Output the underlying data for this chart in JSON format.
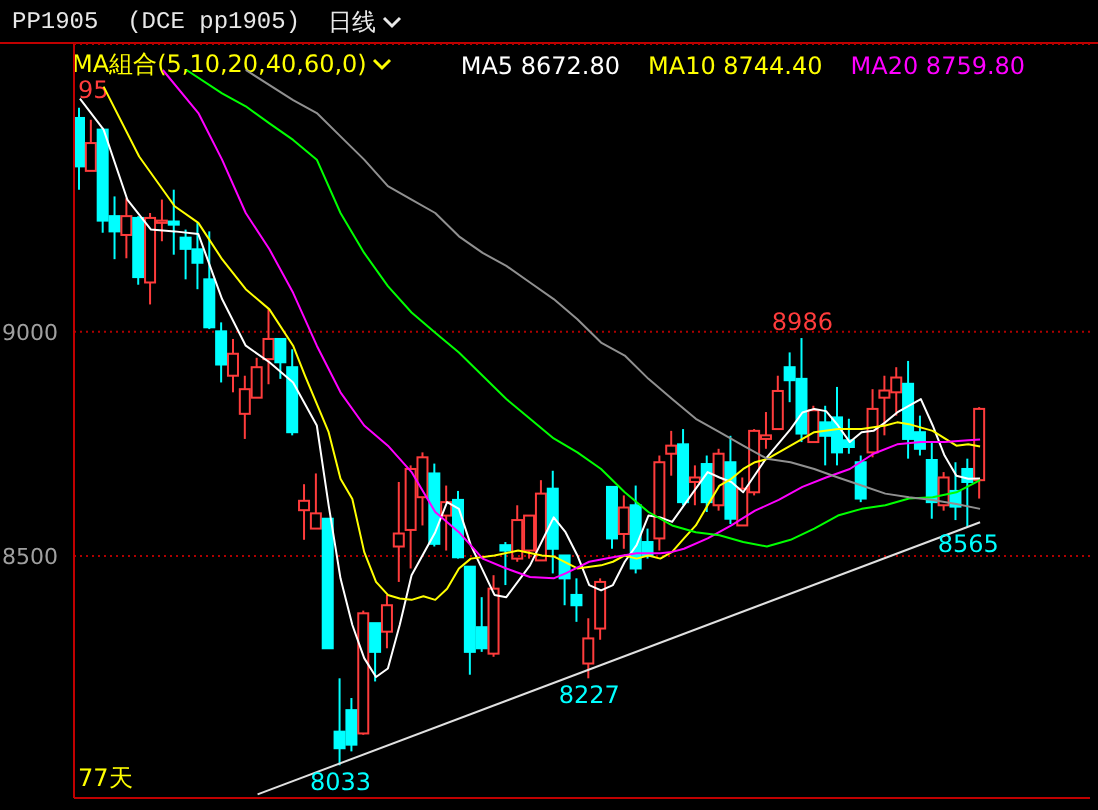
{
  "chart_data": {
    "type": "candlestick",
    "title": "PP1905  (DCE pp1905)",
    "subtitle": "MA組合(5,10,20,40,60,0)",
    "annotations": [
      "95",
      "77天",
      {
        "text": "8986",
        "y": 8986
      },
      {
        "text": "8227",
        "y": 8227
      },
      {
        "text": "8033",
        "y": 8033
      },
      {
        "text": "8565",
        "y": 8565
      },
      "日线"
    ],
    "categories": [
      null,
      null,
      null,
      null,
      null,
      null,
      null,
      null,
      null,
      null,
      null,
      null,
      null,
      null,
      null,
      null,
      null,
      null,
      null,
      null,
      null,
      null,
      null,
      null,
      null,
      null,
      null,
      null,
      null,
      null,
      null,
      null,
      null,
      null,
      null,
      null,
      null,
      null,
      null,
      null,
      null,
      null,
      null,
      null,
      null,
      null,
      null,
      null,
      null,
      null,
      null,
      null,
      null,
      null,
      null,
      null,
      null,
      null,
      null,
      null,
      null,
      null,
      null,
      null,
      null,
      null,
      null,
      null,
      null,
      null,
      null,
      null,
      null,
      null,
      null,
      null,
      null
    ],
    "ohlc": [
      [
        9477,
        9500,
        9317,
        9369
      ],
      [
        9359,
        9473,
        9359,
        9421
      ],
      [
        9451,
        9455,
        9221,
        9248
      ],
      [
        9258,
        9302,
        9162,
        9224
      ],
      [
        9216,
        9298,
        9164,
        9258
      ],
      [
        9254,
        9258,
        9105,
        9122
      ],
      [
        9110,
        9265,
        9061,
        9254
      ],
      [
        9243,
        9295,
        9202,
        9248
      ],
      [
        9246,
        9317,
        9172,
        9239
      ],
      [
        9210,
        9228,
        9117,
        9185
      ],
      [
        9184,
        9243,
        9095,
        9154
      ],
      [
        9117,
        9224,
        9006,
        9010
      ],
      [
        9001,
        9021,
        8887,
        8927
      ],
      [
        8902,
        8984,
        8865,
        8951
      ],
      [
        8817,
        8902,
        8761,
        8872
      ],
      [
        8853,
        8942,
        8853,
        8921
      ],
      [
        8939,
        9050,
        8883,
        8984
      ],
      [
        8984,
        8984,
        8895,
        8932
      ],
      [
        8921,
        8961,
        8769,
        8776
      ],
      [
        8602,
        8660,
        8536,
        8623
      ],
      [
        8561,
        8684,
        8561,
        8595
      ],
      [
        8583,
        8583,
        8294,
        8294
      ],
      [
        8108,
        8227,
        8033,
        8071
      ],
      [
        8156,
        8183,
        8064,
        8079
      ],
      [
        8104,
        8378,
        8101,
        8372
      ],
      [
        8350,
        8350,
        8220,
        8286
      ],
      [
        8331,
        8413,
        8294,
        8390
      ],
      [
        8521,
        8665,
        8442,
        8550
      ],
      [
        8558,
        8702,
        8472,
        8694
      ],
      [
        8631,
        8731,
        8568,
        8720
      ],
      [
        8684,
        8706,
        8521,
        8527
      ],
      [
        8590,
        8657,
        8512,
        8620
      ],
      [
        8625,
        8645,
        8494,
        8497
      ],
      [
        8476,
        8476,
        8235,
        8286
      ],
      [
        8341,
        8408,
        8286,
        8294
      ],
      [
        8282,
        8457,
        8275,
        8427
      ],
      [
        8524,
        8531,
        8435,
        8512
      ],
      [
        8494,
        8613,
        8487,
        8580
      ],
      [
        8512,
        8590,
        8494,
        8590
      ],
      [
        8490,
        8669,
        8490,
        8639
      ],
      [
        8650,
        8690,
        8461,
        8516
      ],
      [
        8501,
        8501,
        8390,
        8450
      ],
      [
        8413,
        8450,
        8353,
        8390
      ],
      [
        8260,
        8361,
        8227,
        8316
      ],
      [
        8338,
        8450,
        8313,
        8442
      ],
      [
        8654,
        8654,
        8516,
        8539
      ],
      [
        8549,
        8635,
        8516,
        8608
      ],
      [
        8613,
        8657,
        8461,
        8472
      ],
      [
        8531,
        8561,
        8494,
        8501
      ],
      [
        8539,
        8724,
        8512,
        8709
      ],
      [
        8728,
        8779,
        8679,
        8746
      ],
      [
        8749,
        8783,
        8613,
        8620
      ],
      [
        8665,
        8702,
        8613,
        8675
      ],
      [
        8705,
        8724,
        8598,
        8620
      ],
      [
        8613,
        8739,
        8601,
        8728
      ],
      [
        8709,
        8768,
        8571,
        8583
      ],
      [
        8568,
        8675,
        8568,
        8650
      ],
      [
        8642,
        8783,
        8635,
        8779
      ],
      [
        8761,
        8821,
        8739,
        8769
      ],
      [
        8783,
        8902,
        8783,
        8868
      ],
      [
        8921,
        8954,
        8843,
        8892
      ],
      [
        8895,
        8986,
        8754,
        8773
      ],
      [
        8754,
        8835,
        8754,
        8825
      ],
      [
        8798,
        8835,
        8702,
        8768
      ],
      [
        8809,
        8877,
        8702,
        8731
      ],
      [
        8758,
        8806,
        8728,
        8743
      ],
      [
        8709,
        8724,
        8620,
        8628
      ],
      [
        8731,
        8872,
        8720,
        8828
      ],
      [
        8853,
        8902,
        8769,
        8869
      ],
      [
        8865,
        8921,
        8813,
        8898
      ],
      [
        8884,
        8935,
        8717,
        8761
      ],
      [
        8776,
        8813,
        8724,
        8739
      ],
      [
        8714,
        8754,
        8583,
        8620
      ],
      [
        8613,
        8687,
        8601,
        8675
      ],
      [
        8645,
        8709,
        8580,
        8610
      ],
      [
        8694,
        8717,
        8565,
        8665
      ],
      [
        8669,
        8832,
        8628,
        8828
      ]
    ],
    "series": [
      {
        "type": "line",
        "name": "MA5 8672.80",
        "color": "#ffffff",
        "values": [
          9520,
          null,
          9451,
          null,
          9295,
          null,
          9228,
          null,
          9224,
          null,
          9218,
          null,
          9073,
          null,
          8969,
          null,
          8932,
          null,
          8887,
          null,
          8791,
          8613,
          8450,
          8346,
          8272,
          8230,
          8249,
          8346,
          8457,
          null,
          8553,
          8620,
          8605,
          8524,
          null,
          8413,
          8408,
          null,
          8479,
          null,
          8586,
          8553,
          8501,
          8435,
          8423,
          8435,
          8487,
          8524,
          8590,
          8586,
          8576,
          null,
          8650,
          8687,
          8675,
          8665,
          8642,
          null,
          8720,
          null,
          8783,
          8820,
          8828,
          8823,
          8791,
          8754,
          8776,
          8779,
          8798,
          8820,
          null,
          8850,
          8791,
          8724,
          8679,
          8672,
          8673
        ]
      },
      {
        "type": "line",
        "name": "MA10 8744.40",
        "color": "#ffff00",
        "values": [
          null,
          null,
          9547,
          null,
          null,
          9391,
          null,
          null,
          9280,
          null,
          9243,
          null,
          9162,
          null,
          9095,
          null,
          9050,
          null,
          8969,
          8902,
          null,
          8776,
          8672,
          8627,
          8509,
          8442,
          8413,
          8405,
          8402,
          8410,
          8402,
          8427,
          8472,
          8494,
          null,
          8501,
          null,
          8512,
          null,
          8501,
          8499,
          null,
          8472,
          null,
          8479,
          8487,
          8501,
          8494,
          8501,
          8494,
          8509,
          8539,
          8568,
          8613,
          8657,
          8672,
          8694,
          8709,
          8716,
          8731,
          8746,
          8761,
          8776,
          null,
          8783,
          null,
          8783,
          null,
          8791,
          8798,
          8794,
          null,
          8779,
          null,
          8746,
          8749,
          8744
        ]
      },
      {
        "type": "line",
        "name": "MA20 8759.80",
        "color": "#ff00ff",
        "values": [
          null,
          null,
          null,
          null,
          null,
          null,
          null,
          9584,
          null,
          null,
          9488,
          null,
          9384,
          null,
          9265,
          null,
          9184,
          null,
          9087,
          null,
          8969,
          null,
          8865,
          null,
          8791,
          null,
          8746,
          null,
          8687,
          null,
          8598,
          null,
          8553,
          null,
          8494,
          null,
          8472,
          null,
          8453,
          null,
          8450,
          8461,
          null,
          8487,
          null,
          8497,
          null,
          8506,
          null,
          8506,
          8509,
          8516,
          null,
          8539,
          null,
          8568,
          null,
          8601,
          null,
          8625,
          null,
          8654,
          null,
          8675,
          null,
          8694,
          null,
          8728,
          null,
          8749,
          null,
          8754,
          null,
          8754,
          null,
          8758,
          8760
        ]
      },
      {
        "type": "line",
        "color": "#00ff00",
        "values": [
          null,
          null,
          null,
          null,
          null,
          null,
          null,
          null,
          null,
          9584,
          null,
          null,
          9532,
          null,
          9503,
          null,
          9465,
          null,
          9428,
          null,
          9384,
          null,
          9265,
          null,
          9176,
          null,
          9102,
          null,
          9043,
          null,
          8998,
          null,
          8954,
          null,
          8902,
          null,
          8850,
          null,
          8806,
          null,
          8762,
          null,
          8731,
          null,
          8694,
          null,
          8642,
          null,
          8598,
          null,
          8568,
          null,
          8553,
          null,
          8546,
          null,
          8531,
          null,
          8521,
          null,
          8536,
          null,
          8561,
          null,
          8590,
          null,
          8605,
          null,
          8613,
          null,
          8628,
          null,
          8631,
          null,
          8642,
          null,
          8669
        ]
      },
      {
        "type": "line",
        "color": "#909090",
        "values": [
          null,
          null,
          null,
          null,
          null,
          null,
          null,
          null,
          null,
          null,
          null,
          null,
          null,
          null,
          9584,
          null,
          null,
          null,
          9517,
          null,
          9488,
          null,
          9436,
          null,
          9384,
          null,
          9325,
          null,
          9295,
          null,
          9265,
          null,
          9213,
          null,
          9176,
          null,
          9147,
          null,
          9110,
          null,
          9073,
          null,
          9028,
          null,
          8976,
          null,
          8947,
          null,
          8895,
          null,
          8850,
          null,
          8806,
          null,
          8776,
          null,
          8746,
          null,
          8717,
          null,
          8709,
          null,
          8694,
          null,
          8675,
          null,
          8657,
          null,
          8639,
          null,
          8631,
          null,
          8625,
          null,
          8616,
          null,
          8605
        ]
      },
      {
        "type": "line",
        "color": "#e0e0e0",
        "values": [
          null,
          null,
          null,
          null,
          null,
          null,
          null,
          null,
          null,
          null,
          null,
          null,
          null,
          null,
          null,
          7968,
          null,
          null,
          null,
          null,
          null,
          null,
          null,
          null,
          null,
          null,
          null,
          null,
          null,
          null,
          null,
          null,
          null,
          null,
          null,
          null,
          null,
          null,
          null,
          null,
          null,
          null,
          null,
          null,
          null,
          null,
          null,
          null,
          null,
          null,
          null,
          null,
          null,
          null,
          null,
          null,
          null,
          null,
          null,
          null,
          null,
          null,
          null,
          null,
          null,
          null,
          null,
          null,
          null,
          null,
          null,
          null,
          null,
          null,
          null,
          null,
          8575
        ]
      }
    ],
    "ylim": [
      7960,
      9642
    ],
    "yticks": [
      8500,
      9000
    ],
    "grid": "y",
    "legend": "top"
  }
}
